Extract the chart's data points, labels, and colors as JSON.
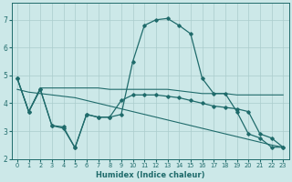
{
  "xlabel": "Humidex (Indice chaleur)",
  "background_color": "#cce8e8",
  "grid_color": "#aacccc",
  "line_color": "#1f6b6b",
  "xlim": [
    -0.5,
    23.5
  ],
  "ylim": [
    2.0,
    7.6
  ],
  "yticks": [
    2,
    3,
    4,
    5,
    6,
    7
  ],
  "xticks": [
    0,
    1,
    2,
    3,
    4,
    5,
    6,
    7,
    8,
    9,
    10,
    11,
    12,
    13,
    14,
    15,
    16,
    17,
    18,
    19,
    20,
    21,
    22,
    23
  ],
  "line_main_x": [
    0,
    1,
    2,
    3,
    4,
    5,
    6,
    7,
    8,
    9,
    10,
    11,
    12,
    13,
    14,
    15,
    16,
    17,
    18,
    19,
    20,
    21,
    22,
    23
  ],
  "line_main_y": [
    4.9,
    3.7,
    4.5,
    3.2,
    3.15,
    2.4,
    3.6,
    3.5,
    3.5,
    3.6,
    5.5,
    6.8,
    7.0,
    7.05,
    6.8,
    6.5,
    4.9,
    4.35,
    4.35,
    3.7,
    2.9,
    2.75,
    2.42,
    2.42
  ],
  "line_mid_x": [
    0,
    1,
    2,
    3,
    4,
    5,
    6,
    7,
    8,
    9,
    10,
    11,
    12,
    13,
    14,
    15,
    16,
    17,
    18,
    19,
    20,
    21,
    22,
    23
  ],
  "line_mid_y": [
    4.9,
    3.7,
    4.5,
    3.2,
    3.1,
    2.4,
    3.6,
    3.5,
    3.5,
    4.1,
    4.3,
    4.3,
    4.3,
    4.25,
    4.2,
    4.1,
    4.0,
    3.9,
    3.85,
    3.8,
    3.7,
    2.9,
    2.75,
    2.42
  ],
  "line_flat1_x": [
    0,
    1,
    2,
    3,
    4,
    5,
    6,
    7,
    8,
    9,
    10,
    11,
    12,
    13,
    14,
    15,
    16,
    17,
    18,
    19,
    20,
    21,
    22,
    23
  ],
  "line_flat1_y": [
    4.9,
    3.7,
    4.55,
    4.55,
    4.55,
    4.55,
    4.55,
    4.55,
    4.5,
    4.5,
    4.5,
    4.5,
    4.5,
    4.5,
    4.45,
    4.4,
    4.35,
    4.35,
    4.35,
    4.3,
    4.3,
    4.3,
    4.3,
    4.3
  ],
  "line_flat2_x": [
    0,
    1,
    2,
    3,
    4,
    5,
    6,
    7,
    8,
    9,
    10,
    11,
    12,
    13,
    14,
    15,
    16,
    17,
    18,
    19,
    20,
    21,
    22,
    23
  ],
  "line_flat2_y": [
    4.5,
    4.4,
    4.35,
    4.3,
    4.25,
    4.2,
    4.1,
    4.0,
    3.9,
    3.8,
    3.7,
    3.6,
    3.5,
    3.4,
    3.3,
    3.2,
    3.1,
    3.0,
    2.9,
    2.8,
    2.7,
    2.6,
    2.5,
    2.42
  ]
}
